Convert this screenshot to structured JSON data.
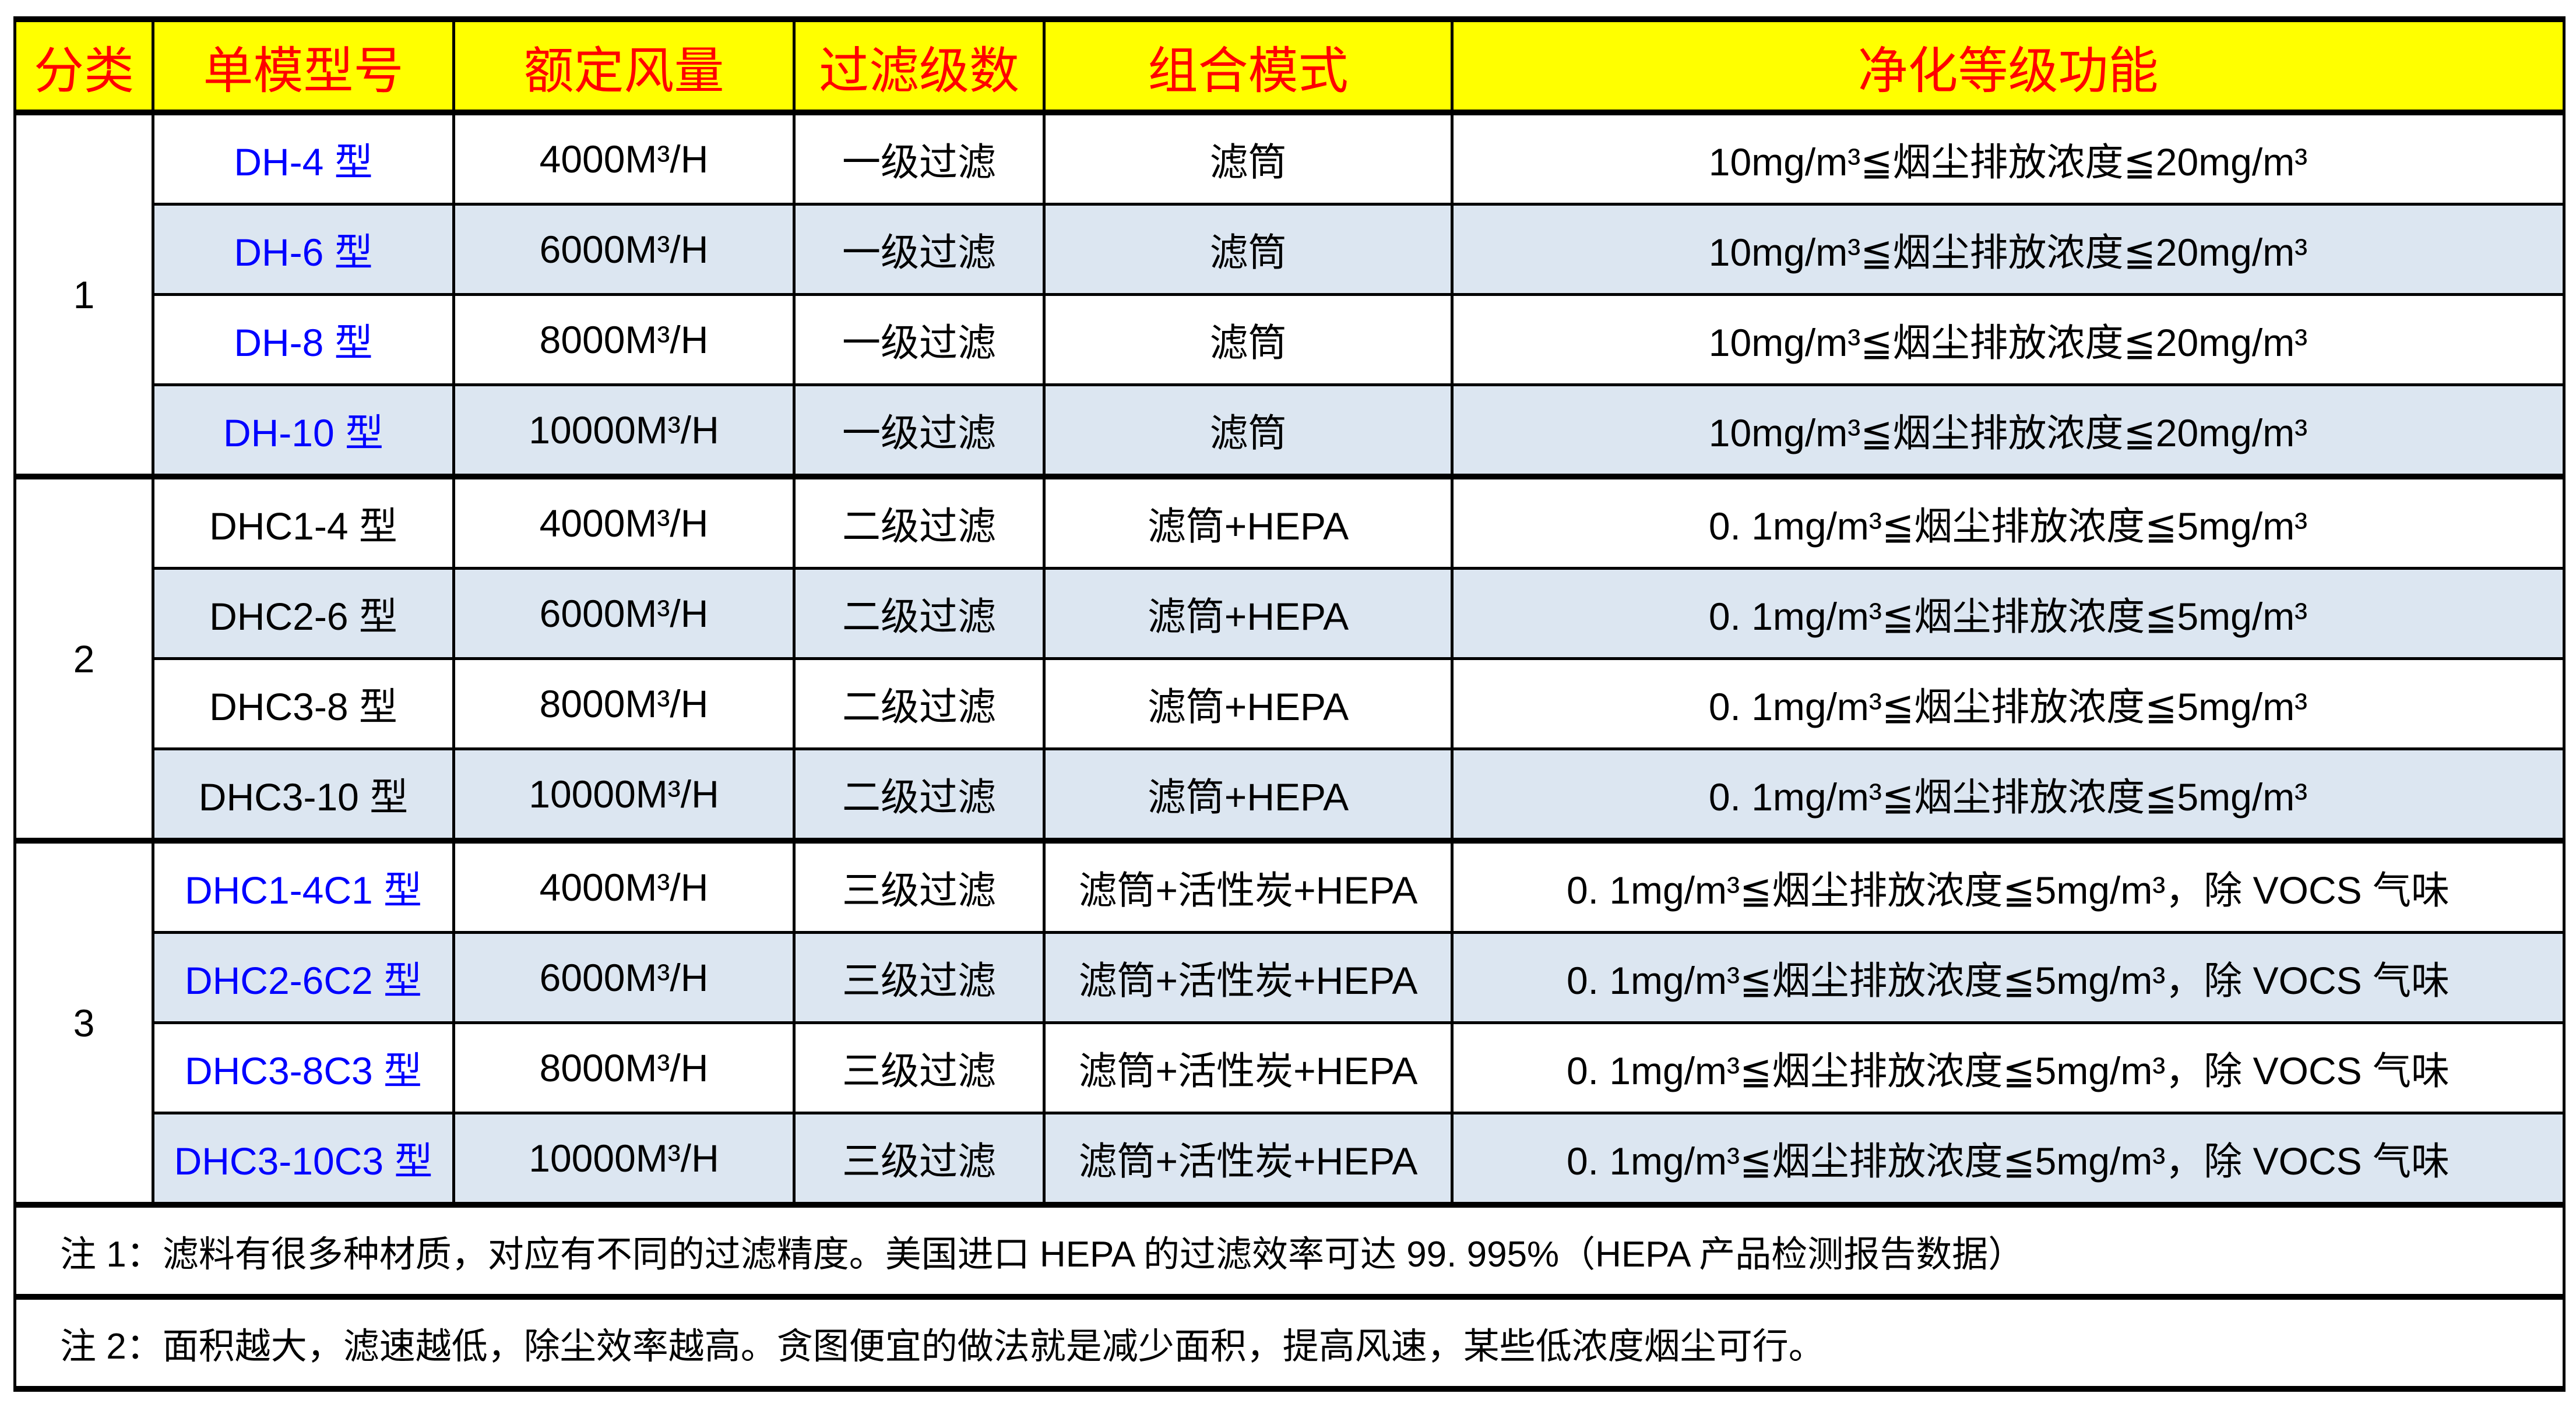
{
  "colors": {
    "header_bg": "#FFFF00",
    "header_text": "#FF0000",
    "model_blue": "#0000FF",
    "alt_row_bg": "#DCE6F1"
  },
  "headers": [
    "分类",
    "单模型号",
    "额定风量",
    "过滤级数",
    "组合模式",
    "净化等级功能"
  ],
  "groups": [
    {
      "category": "1",
      "blue": true,
      "rows": [
        {
          "model": "DH-4 型",
          "airflow": "4000M³/H",
          "stages": "一级过滤",
          "combo": "滤筒",
          "function": "10mg/m³≦烟尘排放浓度≦20mg/m³"
        },
        {
          "model": "DH-6 型",
          "airflow": "6000M³/H",
          "stages": "一级过滤",
          "combo": "滤筒",
          "function": "10mg/m³≦烟尘排放浓度≦20mg/m³"
        },
        {
          "model": "DH-8 型",
          "airflow": "8000M³/H",
          "stages": "一级过滤",
          "combo": "滤筒",
          "function": "10mg/m³≦烟尘排放浓度≦20mg/m³"
        },
        {
          "model": "DH-10 型",
          "airflow": "10000M³/H",
          "stages": "一级过滤",
          "combo": "滤筒",
          "function": "10mg/m³≦烟尘排放浓度≦20mg/m³"
        }
      ]
    },
    {
      "category": "2",
      "blue": false,
      "rows": [
        {
          "model": "DHC1-4 型",
          "airflow": "4000M³/H",
          "stages": "二级过滤",
          "combo": "滤筒+HEPA",
          "function": "0. 1mg/m³≦烟尘排放浓度≦5mg/m³"
        },
        {
          "model": "DHC2-6 型",
          "airflow": "6000M³/H",
          "stages": "二级过滤",
          "combo": "滤筒+HEPA",
          "function": "0. 1mg/m³≦烟尘排放浓度≦5mg/m³"
        },
        {
          "model": "DHC3-8 型",
          "airflow": "8000M³/H",
          "stages": "二级过滤",
          "combo": "滤筒+HEPA",
          "function": "0. 1mg/m³≦烟尘排放浓度≦5mg/m³"
        },
        {
          "model": "DHC3-10 型",
          "airflow": "10000M³/H",
          "stages": "二级过滤",
          "combo": "滤筒+HEPA",
          "function": "0. 1mg/m³≦烟尘排放浓度≦5mg/m³"
        }
      ]
    },
    {
      "category": "3",
      "blue": true,
      "rows": [
        {
          "model": "DHC1-4C1 型",
          "airflow": "4000M³/H",
          "stages": "三级过滤",
          "combo": "滤筒+活性炭+HEPA",
          "function": "0. 1mg/m³≦烟尘排放浓度≦5mg/m³，除 VOCS 气味"
        },
        {
          "model": "DHC2-6C2 型",
          "airflow": "6000M³/H",
          "stages": "三级过滤",
          "combo": "滤筒+活性炭+HEPA",
          "function": "0. 1mg/m³≦烟尘排放浓度≦5mg/m³，除 VOCS 气味"
        },
        {
          "model": "DHC3-8C3 型",
          "airflow": "8000M³/H",
          "stages": "三级过滤",
          "combo": "滤筒+活性炭+HEPA",
          "function": "0. 1mg/m³≦烟尘排放浓度≦5mg/m³，除 VOCS 气味"
        },
        {
          "model": "DHC3-10C3 型",
          "airflow": "10000M³/H",
          "stages": "三级过滤",
          "combo": "滤筒+活性炭+HEPA",
          "function": "0. 1mg/m³≦烟尘排放浓度≦5mg/m³，除 VOCS 气味"
        }
      ]
    }
  ],
  "notes": [
    "注 1：滤料有很多种材质，对应有不同的过滤精度。美国进口 HEPA 的过滤效率可达 99. 995%（HEPA 产品检测报告数据）",
    "注 2：面积越大，滤速越低，除尘效率越高。贪图便宜的做法就是减少面积，提高风速，某些低浓度烟尘可行。"
  ]
}
